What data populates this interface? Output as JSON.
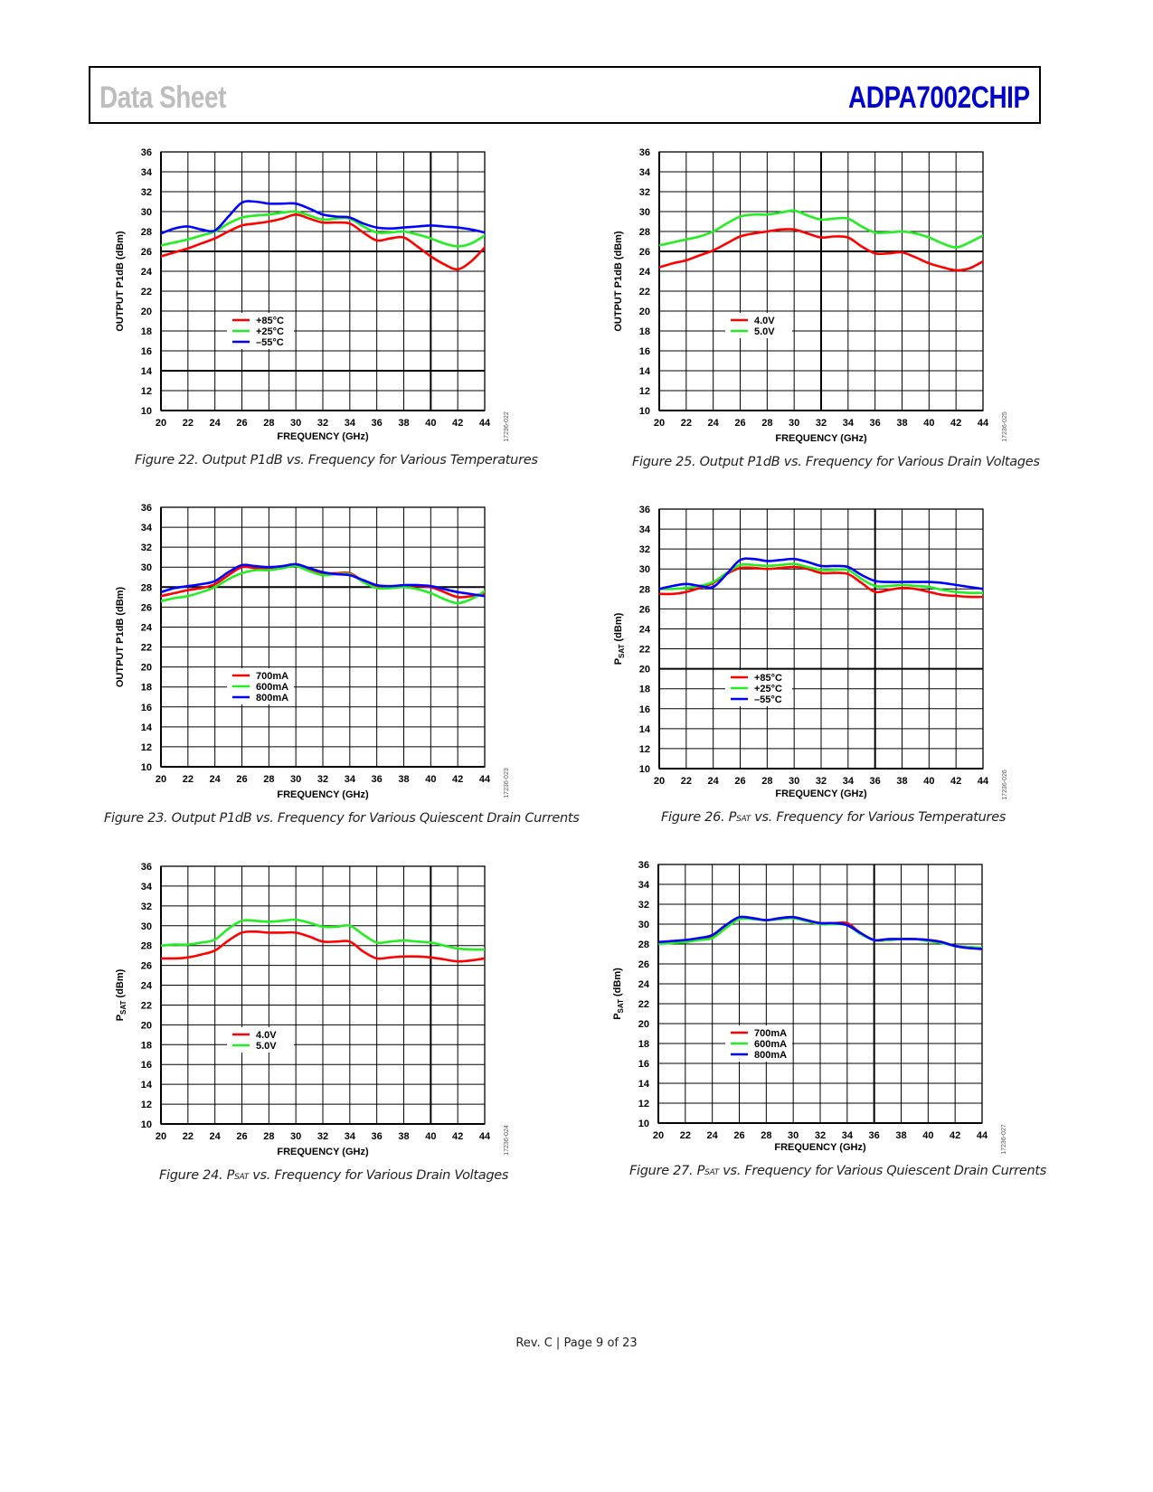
{
  "header": {
    "left_title": "Data Sheet",
    "right_title": "ADPA7002CHIP"
  },
  "footer": {
    "text": "Rev. C | Page 9 of 23"
  },
  "colors": {
    "red": "#ff0000",
    "green": "#22ee22",
    "blue": "#0000ff",
    "header_blue": "#0000cc"
  },
  "chart_data": [
    {
      "id": "fig22",
      "type": "line",
      "caption": "Figure 22. Output P1dB vs. Frequency for Various Temperatures",
      "figure_code": "17236-022",
      "xlabel": "FREQUENCY (GHz)",
      "ylabel": "OUTPUT P1dB (dBm)",
      "xlim": [
        20,
        44
      ],
      "ylim": [
        10,
        36
      ],
      "xticks": [
        "20",
        "22",
        "24",
        "26",
        "28",
        "30",
        "32",
        "34",
        "36",
        "38",
        "40",
        "42",
        "44"
      ],
      "yticks": [
        "10",
        "12",
        "14",
        "16",
        "18",
        "20",
        "22",
        "24",
        "26",
        "28",
        "30",
        "32",
        "34",
        "36"
      ],
      "grid": true,
      "bold_h": [
        26,
        14
      ],
      "bold_v": [
        40
      ],
      "legend_position": "lower-left",
      "x": [
        20,
        21,
        22,
        23,
        24,
        25,
        26,
        27,
        28,
        29,
        30,
        31,
        32,
        33,
        34,
        35,
        36,
        37,
        38,
        39,
        40,
        41,
        42,
        43,
        44
      ],
      "series": [
        {
          "name": "+85°C",
          "color": "#ff0000",
          "values": [
            25.5,
            25.9,
            26.3,
            26.8,
            27.3,
            28.0,
            28.6,
            28.8,
            29.0,
            29.3,
            29.7,
            29.3,
            28.9,
            28.9,
            28.8,
            27.9,
            27.1,
            27.3,
            27.4,
            26.5,
            25.5,
            24.7,
            24.2,
            25.0,
            26.4
          ]
        },
        {
          "name": "+25°C",
          "color": "#22ee22",
          "values": [
            26.6,
            26.9,
            27.2,
            27.6,
            28.0,
            28.8,
            29.4,
            29.6,
            29.7,
            29.9,
            30.0,
            29.6,
            29.2,
            29.3,
            29.3,
            28.5,
            27.9,
            27.9,
            28.0,
            27.7,
            27.3,
            26.8,
            26.5,
            26.8,
            27.6
          ]
        },
        {
          "name": "–55°C",
          "color": "#0000ff",
          "values": [
            27.8,
            28.3,
            28.5,
            28.2,
            28.1,
            29.5,
            30.9,
            31.0,
            30.8,
            30.8,
            30.8,
            30.3,
            29.7,
            29.5,
            29.4,
            28.8,
            28.4,
            28.3,
            28.4,
            28.5,
            28.6,
            28.5,
            28.4,
            28.2,
            27.9
          ]
        }
      ]
    },
    {
      "id": "fig25",
      "type": "line",
      "caption": "Figure 25. Output P1dB vs. Frequency for Various Drain Voltages",
      "figure_code": "17236-025",
      "xlabel": "FREQUENCY (GHz)",
      "ylabel": "OUTPUT P1dB (dBm)",
      "xlim": [
        20,
        44
      ],
      "ylim": [
        10,
        36
      ],
      "xticks": [
        "20",
        "22",
        "24",
        "26",
        "28",
        "30",
        "32",
        "34",
        "36",
        "38",
        "40",
        "42",
        "44"
      ],
      "yticks": [
        "10",
        "12",
        "14",
        "16",
        "18",
        "20",
        "22",
        "24",
        "26",
        "28",
        "30",
        "32",
        "34",
        "36"
      ],
      "grid": true,
      "bold_h": [
        26
      ],
      "bold_v": [
        32
      ],
      "legend_position": "lower-left",
      "x": [
        20,
        21,
        22,
        23,
        24,
        25,
        26,
        27,
        28,
        29,
        30,
        31,
        32,
        33,
        34,
        35,
        36,
        37,
        38,
        39,
        40,
        41,
        42,
        43,
        44
      ],
      "series": [
        {
          "name": "4.0V",
          "color": "#ff0000",
          "values": [
            24.4,
            24.8,
            25.1,
            25.6,
            26.1,
            26.8,
            27.5,
            27.8,
            28.0,
            28.2,
            28.2,
            27.8,
            27.4,
            27.5,
            27.4,
            26.5,
            25.8,
            25.8,
            25.9,
            25.4,
            24.8,
            24.4,
            24.1,
            24.3,
            25.0
          ]
        },
        {
          "name": "5.0V",
          "color": "#22ee22",
          "values": [
            26.6,
            26.9,
            27.2,
            27.5,
            28.0,
            28.8,
            29.5,
            29.7,
            29.7,
            29.9,
            30.1,
            29.6,
            29.2,
            29.3,
            29.3,
            28.5,
            27.9,
            27.9,
            28.0,
            27.8,
            27.4,
            26.8,
            26.4,
            26.9,
            27.6
          ]
        }
      ]
    },
    {
      "id": "fig23",
      "type": "line",
      "caption": "Figure 23. Output P1dB vs. Frequency for Various Quiescent Drain Currents",
      "figure_code": "17236-023",
      "xlabel": "FREQUENCY (GHz)",
      "ylabel": "OUTPUT P1dB (dBm)",
      "xlim": [
        20,
        44
      ],
      "ylim": [
        10,
        36
      ],
      "xticks": [
        "20",
        "22",
        "24",
        "26",
        "28",
        "30",
        "32",
        "34",
        "36",
        "38",
        "40",
        "42",
        "44"
      ],
      "yticks": [
        "10",
        "12",
        "14",
        "16",
        "18",
        "20",
        "22",
        "24",
        "26",
        "28",
        "30",
        "32",
        "34",
        "36"
      ],
      "grid": true,
      "bold_h": [
        28
      ],
      "bold_v": [],
      "legend_position": "lower-left",
      "x": [
        20,
        21,
        22,
        23,
        24,
        25,
        26,
        27,
        28,
        29,
        30,
        31,
        32,
        33,
        34,
        35,
        36,
        37,
        38,
        39,
        40,
        41,
        42,
        43,
        44
      ],
      "series": [
        {
          "name": "700mA",
          "color": "#ff0000",
          "values": [
            27.1,
            27.4,
            27.7,
            27.9,
            28.3,
            29.2,
            30.0,
            29.9,
            29.8,
            29.9,
            30.2,
            29.8,
            29.4,
            29.4,
            29.4,
            28.6,
            28.1,
            28.0,
            28.1,
            28.1,
            28.0,
            27.5,
            27.0,
            27.1,
            27.4
          ]
        },
        {
          "name": "600mA",
          "color": "#22ee22",
          "values": [
            26.6,
            26.9,
            27.1,
            27.5,
            28.0,
            28.8,
            29.4,
            29.7,
            29.7,
            29.9,
            30.1,
            29.6,
            29.2,
            29.3,
            29.3,
            28.5,
            27.9,
            27.9,
            28.0,
            27.8,
            27.4,
            26.8,
            26.4,
            26.8,
            27.6
          ]
        },
        {
          "name": "800mA",
          "color": "#0000ff",
          "values": [
            27.5,
            27.9,
            28.1,
            28.3,
            28.6,
            29.5,
            30.2,
            30.1,
            30.0,
            30.1,
            30.3,
            29.9,
            29.5,
            29.3,
            29.2,
            28.7,
            28.2,
            28.1,
            28.2,
            28.2,
            28.1,
            27.8,
            27.5,
            27.3,
            27.1
          ]
        }
      ]
    },
    {
      "id": "fig26",
      "type": "line",
      "caption_prefix": "Figure 26. P",
      "caption_sub": "SAT",
      "caption_suffix": " vs. Frequency for Various Temperatures",
      "figure_code": "17236-026",
      "xlabel": "FREQUENCY (GHz)",
      "ylabel_main": "P",
      "ylabel_sub": "SAT",
      "ylabel_tail": " (dBm)",
      "xlim": [
        20,
        44
      ],
      "ylim": [
        10,
        36
      ],
      "xticks": [
        "20",
        "22",
        "24",
        "26",
        "28",
        "30",
        "32",
        "34",
        "36",
        "38",
        "40",
        "42",
        "44"
      ],
      "yticks": [
        "10",
        "12",
        "14",
        "16",
        "18",
        "20",
        "22",
        "24",
        "26",
        "28",
        "30",
        "32",
        "34",
        "36"
      ],
      "grid": true,
      "bold_h": [
        20
      ],
      "bold_v": [
        36
      ],
      "legend_position": "lower-left",
      "x": [
        20,
        21,
        22,
        23,
        24,
        25,
        26,
        27,
        28,
        29,
        30,
        31,
        32,
        33,
        34,
        35,
        36,
        37,
        38,
        39,
        40,
        41,
        42,
        43,
        44
      ],
      "series": [
        {
          "name": "+85°C",
          "color": "#ff0000",
          "values": [
            27.5,
            27.5,
            27.7,
            28.1,
            28.6,
            29.5,
            30.1,
            30.1,
            30.0,
            30.1,
            30.2,
            30.0,
            29.6,
            29.6,
            29.5,
            28.6,
            27.7,
            27.9,
            28.1,
            28.0,
            27.7,
            27.4,
            27.3,
            27.2,
            27.2
          ]
        },
        {
          "name": "+25°C",
          "color": "#22ee22",
          "values": [
            28.0,
            28.0,
            28.1,
            28.3,
            28.7,
            29.6,
            30.4,
            30.4,
            30.3,
            30.4,
            30.5,
            30.2,
            29.9,
            29.9,
            29.9,
            29.0,
            28.3,
            28.3,
            28.4,
            28.3,
            28.2,
            27.9,
            27.7,
            27.6,
            27.6
          ]
        },
        {
          "name": "–55°C",
          "color": "#0000ff",
          "values": [
            28.0,
            28.3,
            28.5,
            28.3,
            28.2,
            29.5,
            30.9,
            31.0,
            30.8,
            30.9,
            31.0,
            30.7,
            30.3,
            30.3,
            30.2,
            29.4,
            28.8,
            28.7,
            28.7,
            28.7,
            28.7,
            28.6,
            28.4,
            28.2,
            28.0
          ]
        }
      ]
    },
    {
      "id": "fig24",
      "type": "line",
      "caption_prefix": "Figure 24. P",
      "caption_sub": "SAT",
      "caption_suffix": " vs. Frequency for Various Drain Voltages",
      "figure_code": "17236-024",
      "xlabel": "FREQUENCY (GHz)",
      "ylabel_main": "P",
      "ylabel_sub": "SAT",
      "ylabel_tail": " (dBm)",
      "xlim": [
        20,
        44
      ],
      "ylim": [
        10,
        36
      ],
      "xticks": [
        "20",
        "22",
        "24",
        "26",
        "28",
        "30",
        "32",
        "34",
        "36",
        "38",
        "40",
        "42",
        "44"
      ],
      "yticks": [
        "10",
        "12",
        "14",
        "16",
        "18",
        "20",
        "22",
        "24",
        "26",
        "28",
        "30",
        "32",
        "34",
        "36"
      ],
      "grid": true,
      "bold_h": [],
      "bold_v": [
        40
      ],
      "legend_position": "lower-left",
      "x": [
        20,
        21,
        22,
        23,
        24,
        25,
        26,
        27,
        28,
        29,
        30,
        31,
        32,
        33,
        34,
        35,
        36,
        37,
        38,
        39,
        40,
        41,
        42,
        43,
        44
      ],
      "series": [
        {
          "name": "4.0V",
          "color": "#ff0000",
          "values": [
            26.7,
            26.7,
            26.8,
            27.1,
            27.5,
            28.5,
            29.3,
            29.4,
            29.3,
            29.3,
            29.3,
            28.9,
            28.4,
            28.4,
            28.4,
            27.4,
            26.7,
            26.8,
            26.9,
            26.9,
            26.8,
            26.6,
            26.4,
            26.5,
            26.7
          ]
        },
        {
          "name": "5.0V",
          "color": "#22ee22",
          "values": [
            28.0,
            28.1,
            28.1,
            28.3,
            28.6,
            29.7,
            30.5,
            30.5,
            30.4,
            30.5,
            30.6,
            30.3,
            29.9,
            29.9,
            30.0,
            29.1,
            28.3,
            28.4,
            28.5,
            28.4,
            28.3,
            28.0,
            27.7,
            27.6,
            27.6
          ]
        }
      ]
    },
    {
      "id": "fig27",
      "type": "line",
      "caption_prefix": "Figure 27. P",
      "caption_sub": "SAT",
      "caption_suffix": " vs. Frequency for Various Quiescent Drain Currents",
      "figure_code": "17236-027",
      "xlabel": "FREQUENCY (GHz)",
      "ylabel_main": "P",
      "ylabel_sub": "SAT",
      "ylabel_tail": " (dBm)",
      "xlim": [
        20,
        44
      ],
      "ylim": [
        10,
        36
      ],
      "xticks": [
        "20",
        "22",
        "24",
        "26",
        "28",
        "30",
        "32",
        "34",
        "36",
        "38",
        "40",
        "42",
        "44"
      ],
      "yticks": [
        "10",
        "12",
        "14",
        "16",
        "18",
        "20",
        "22",
        "24",
        "26",
        "28",
        "30",
        "32",
        "34",
        "36"
      ],
      "grid": true,
      "bold_h": [],
      "bold_v": [
        36
      ],
      "legend_position": "lower-left",
      "x": [
        20,
        21,
        22,
        23,
        24,
        25,
        26,
        27,
        28,
        29,
        30,
        31,
        32,
        33,
        34,
        35,
        36,
        37,
        38,
        39,
        40,
        41,
        42,
        43,
        44
      ],
      "series": [
        {
          "name": "700mA",
          "color": "#ff0000",
          "values": [
            28.1,
            28.2,
            28.3,
            28.5,
            28.8,
            29.8,
            30.6,
            30.6,
            30.4,
            30.6,
            30.7,
            30.4,
            30.1,
            30.1,
            30.1,
            29.1,
            28.4,
            28.4,
            28.5,
            28.5,
            28.4,
            28.2,
            27.8,
            27.7,
            27.6
          ]
        },
        {
          "name": "600mA",
          "color": "#22ee22",
          "values": [
            28.0,
            28.1,
            28.2,
            28.4,
            28.6,
            29.6,
            30.5,
            30.5,
            30.4,
            30.5,
            30.6,
            30.3,
            30.0,
            30.0,
            29.9,
            29.0,
            28.4,
            28.4,
            28.5,
            28.5,
            28.3,
            28.1,
            27.8,
            27.7,
            27.6
          ]
        },
        {
          "name": "800mA",
          "color": "#0000ff",
          "values": [
            28.2,
            28.3,
            28.4,
            28.6,
            28.9,
            29.9,
            30.7,
            30.6,
            30.4,
            30.6,
            30.7,
            30.4,
            30.1,
            30.1,
            29.9,
            29.1,
            28.4,
            28.5,
            28.5,
            28.5,
            28.4,
            28.2,
            27.8,
            27.6,
            27.5
          ]
        }
      ]
    }
  ]
}
